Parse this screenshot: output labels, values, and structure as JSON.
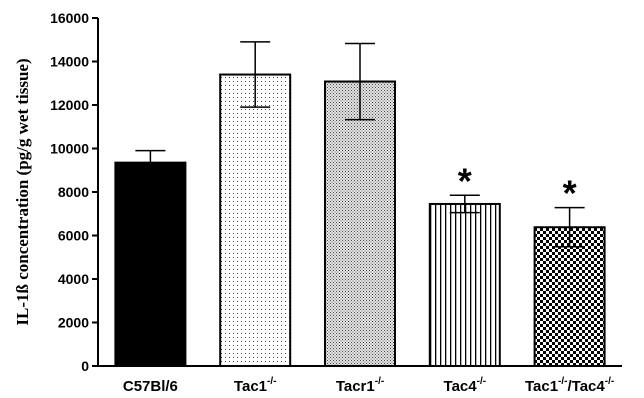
{
  "chart_data": {
    "type": "bar",
    "title": "",
    "xlabel": "",
    "ylabel": "IL-1ß concentration (pg/g wet tissue)",
    "ylim": [
      0,
      16000
    ],
    "yticks": [
      0,
      2000,
      4000,
      6000,
      8000,
      10000,
      12000,
      14000,
      16000
    ],
    "grid": false,
    "categories": [
      {
        "base": "C57Bl/6",
        "sup": ""
      },
      {
        "base": "Tac1",
        "sup": "-/-"
      },
      {
        "base": "Tacr1",
        "sup": "-/-"
      },
      {
        "base": "Tac4",
        "sup": "-/-"
      },
      {
        "base": "Tac1",
        "sup": "-/-",
        "base2": "/Tac4",
        "sup2": "-/-"
      }
    ],
    "values": [
      9350,
      13400,
      13080,
      7450,
      6380
    ],
    "errors": [
      550,
      1500,
      1750,
      400,
      900
    ],
    "fills": [
      "solid-black",
      "sparse-dots",
      "dense-dots",
      "vertical-stripes",
      "checkerboard"
    ],
    "significance": [
      "",
      "",
      "",
      "*",
      "*"
    ]
  }
}
